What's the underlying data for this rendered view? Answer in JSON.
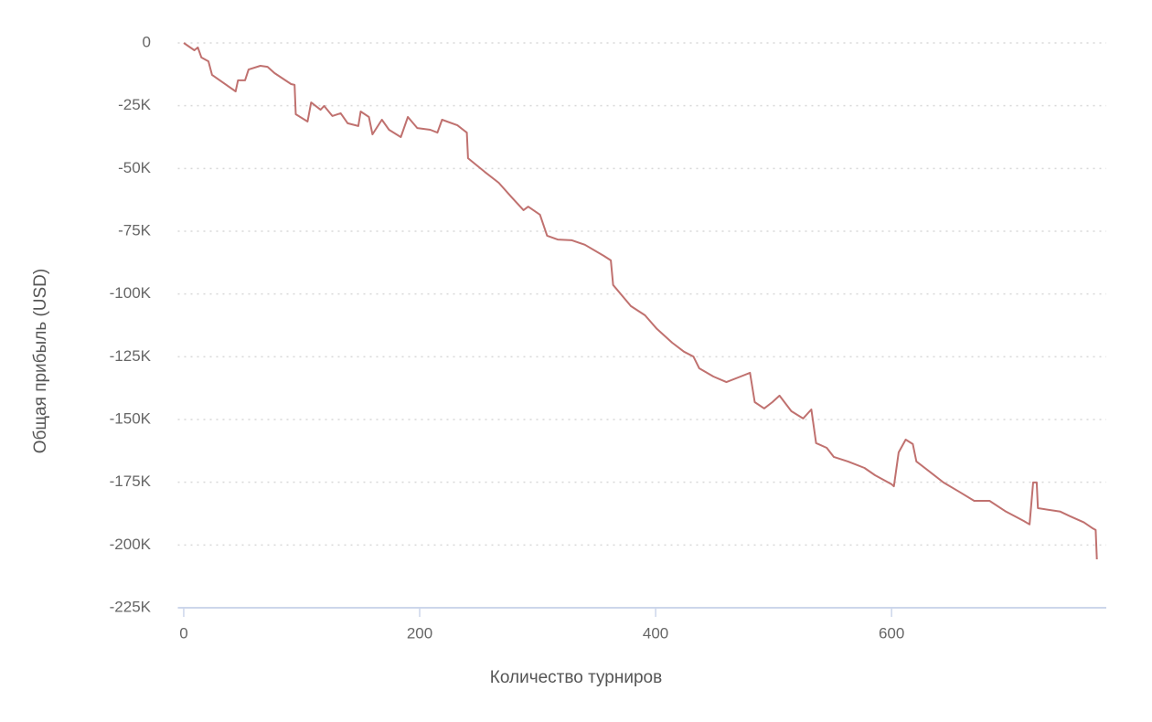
{
  "chart_data": {
    "type": "line",
    "xlabel": "Количество турниров",
    "ylabel": "Общая прибыль (USD)",
    "color": "#c0716f",
    "grid": true,
    "xlim": [
      -5,
      782
    ],
    "ylim": [
      -225000,
      0
    ],
    "xticks": [
      0,
      200,
      400,
      600
    ],
    "yticks": [
      0,
      {
        "value": -25000,
        "label": "-25K"
      },
      {
        "value": -50000,
        "label": "-50K"
      },
      {
        "value": -75000,
        "label": "-75K"
      },
      {
        "value": -100000,
        "label": "-100K"
      },
      {
        "value": -125000,
        "label": "-125K"
      },
      {
        "value": -150000,
        "label": "-150K"
      },
      {
        "value": -175000,
        "label": "-175K"
      },
      {
        "value": -200000,
        "label": "-200K"
      },
      {
        "value": -225000,
        "label": "-225K"
      }
    ],
    "x": [
      0,
      9,
      12,
      15,
      21,
      24,
      44,
      46,
      52,
      55,
      65,
      71,
      77,
      91,
      94,
      95,
      105,
      108,
      116,
      119,
      126,
      133,
      139,
      148,
      150,
      157,
      160,
      168,
      174,
      184,
      190,
      198,
      209,
      215,
      219,
      232,
      240,
      241,
      255,
      267,
      278,
      288,
      292,
      302,
      308,
      317,
      329,
      340,
      356,
      362,
      364,
      379,
      391,
      401,
      414,
      424,
      432,
      437,
      449,
      460,
      472,
      480,
      484,
      492,
      499,
      505,
      515,
      525,
      532,
      536,
      545,
      551,
      563,
      577,
      586,
      600,
      602,
      606,
      612,
      618,
      621,
      634,
      644,
      657,
      670,
      683,
      697,
      712,
      717,
      720,
      723,
      724,
      743,
      751,
      763,
      770,
      773,
      774
    ],
    "values": [
      0,
      -2900,
      -1800,
      -5800,
      -7300,
      -12700,
      -19300,
      -14900,
      -14900,
      -10600,
      -9100,
      -9500,
      -12000,
      -16400,
      -16700,
      -28400,
      -31300,
      -23700,
      -26600,
      -25100,
      -29100,
      -28000,
      -32000,
      -33100,
      -27300,
      -29500,
      -36400,
      -30600,
      -34600,
      -37500,
      -29500,
      -33900,
      -34600,
      -35700,
      -30600,
      -32800,
      -35700,
      -45900,
      -51300,
      -55700,
      -61500,
      -66600,
      -65200,
      -68400,
      -76800,
      -78300,
      -78600,
      -80400,
      -84800,
      -86600,
      -96400,
      -104800,
      -108500,
      -113900,
      -119400,
      -123000,
      -124900,
      -129600,
      -132900,
      -135100,
      -132900,
      -131400,
      -143100,
      -145600,
      -143100,
      -140500,
      -146700,
      -149600,
      -146000,
      -159400,
      -161300,
      -164900,
      -166700,
      -169300,
      -172200,
      -175800,
      -176600,
      -163100,
      -158000,
      -159800,
      -166700,
      -171400,
      -175100,
      -178700,
      -182400,
      -182400,
      -186700,
      -190400,
      -191800,
      -175100,
      -175100,
      -185300,
      -186700,
      -188500,
      -191000,
      -193200,
      -194000,
      -205700
    ]
  }
}
